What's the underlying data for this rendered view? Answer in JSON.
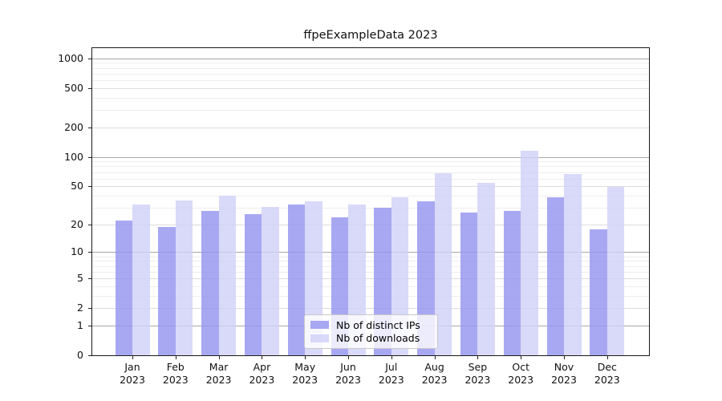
{
  "title": "ffpeExampleData 2023",
  "chart_data": {
    "type": "bar",
    "title": "ffpeExampleData 2023",
    "categories": [
      "Jan",
      "Feb",
      "Mar",
      "Apr",
      "May",
      "Jun",
      "Jul",
      "Aug",
      "Sep",
      "Oct",
      "Nov",
      "Dec"
    ],
    "xlabel_year": "2023",
    "series": [
      {
        "name": "Nb of distinct IPs",
        "color": "#9595ef",
        "values": [
          22,
          19,
          28,
          26,
          33,
          24,
          30,
          35,
          27,
          28,
          39,
          18
        ]
      },
      {
        "name": "Nb of downloads",
        "color": "#d1d1f8",
        "values": [
          33,
          36,
          40,
          31,
          35,
          33,
          39,
          69,
          55,
          116,
          68,
          50
        ]
      }
    ],
    "yscale": "log1p",
    "yticks": [
      0,
      1,
      2,
      5,
      10,
      20,
      50,
      100,
      200,
      500,
      1000
    ],
    "ylim": [
      0,
      1300
    ],
    "xlabel": "",
    "ylabel": "",
    "grid": true,
    "legend_position": "lower center"
  },
  "colors": {
    "ips_bar": "#9595ef",
    "downloads_bar": "#d1d1f8",
    "grid_decade": "#a8a8a8",
    "grid_major": "#dcdcdc",
    "grid_minor": "#eeeeee",
    "axis": "#1a1a1a",
    "background": "#ffffff"
  }
}
